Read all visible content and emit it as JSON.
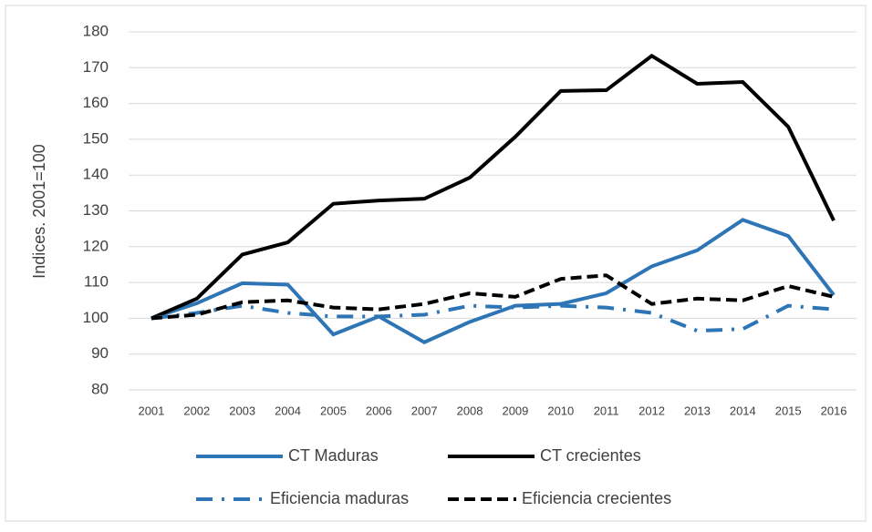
{
  "chart_data": {
    "type": "line",
    "y_label": "Indices. 2001=100",
    "categories": [
      "2001",
      "2002",
      "2003",
      "2004",
      "2005",
      "2006",
      "2007",
      "2008",
      "2009",
      "2010",
      "2011",
      "2012",
      "2013",
      "2014",
      "2015",
      "2016"
    ],
    "series": [
      {
        "name": "CT Maduras",
        "color": "#2e75b6",
        "linestyle": "solid",
        "values": [
          100,
          104.2,
          109.8,
          109.4,
          95.5,
          100.5,
          93.3,
          99,
          103.5,
          104,
          107,
          114.5,
          119,
          127.5,
          123,
          106.5
        ]
      },
      {
        "name": "CT crecientes",
        "color": "#000000",
        "linestyle": "solid",
        "values": [
          100,
          105.5,
          117.8,
          121.2,
          132,
          132.9,
          133.4,
          139.3,
          150.7,
          163.5,
          163.7,
          173.3,
          165.5,
          166,
          153.5,
          127.3
        ]
      },
      {
        "name": "Eficiencia maduras",
        "color": "#2e75b6",
        "linestyle": "dashdot",
        "values": [
          100,
          101.5,
          103.5,
          101.5,
          100.5,
          100.5,
          101,
          103.5,
          103,
          103.5,
          103,
          101.5,
          96.5,
          97,
          103.5,
          102.5
        ]
      },
      {
        "name": "Eficiencia crecientes",
        "color": "#000000",
        "linestyle": "dashed",
        "values": [
          100,
          101,
          104.5,
          105,
          103,
          102.5,
          104,
          107,
          106,
          111,
          112,
          104,
          105.5,
          105,
          109,
          106
        ]
      }
    ],
    "ylim": [
      80,
      180
    ],
    "yticks": [
      80,
      90,
      100,
      110,
      120,
      130,
      140,
      150,
      160,
      170,
      180
    ],
    "grid": true
  }
}
